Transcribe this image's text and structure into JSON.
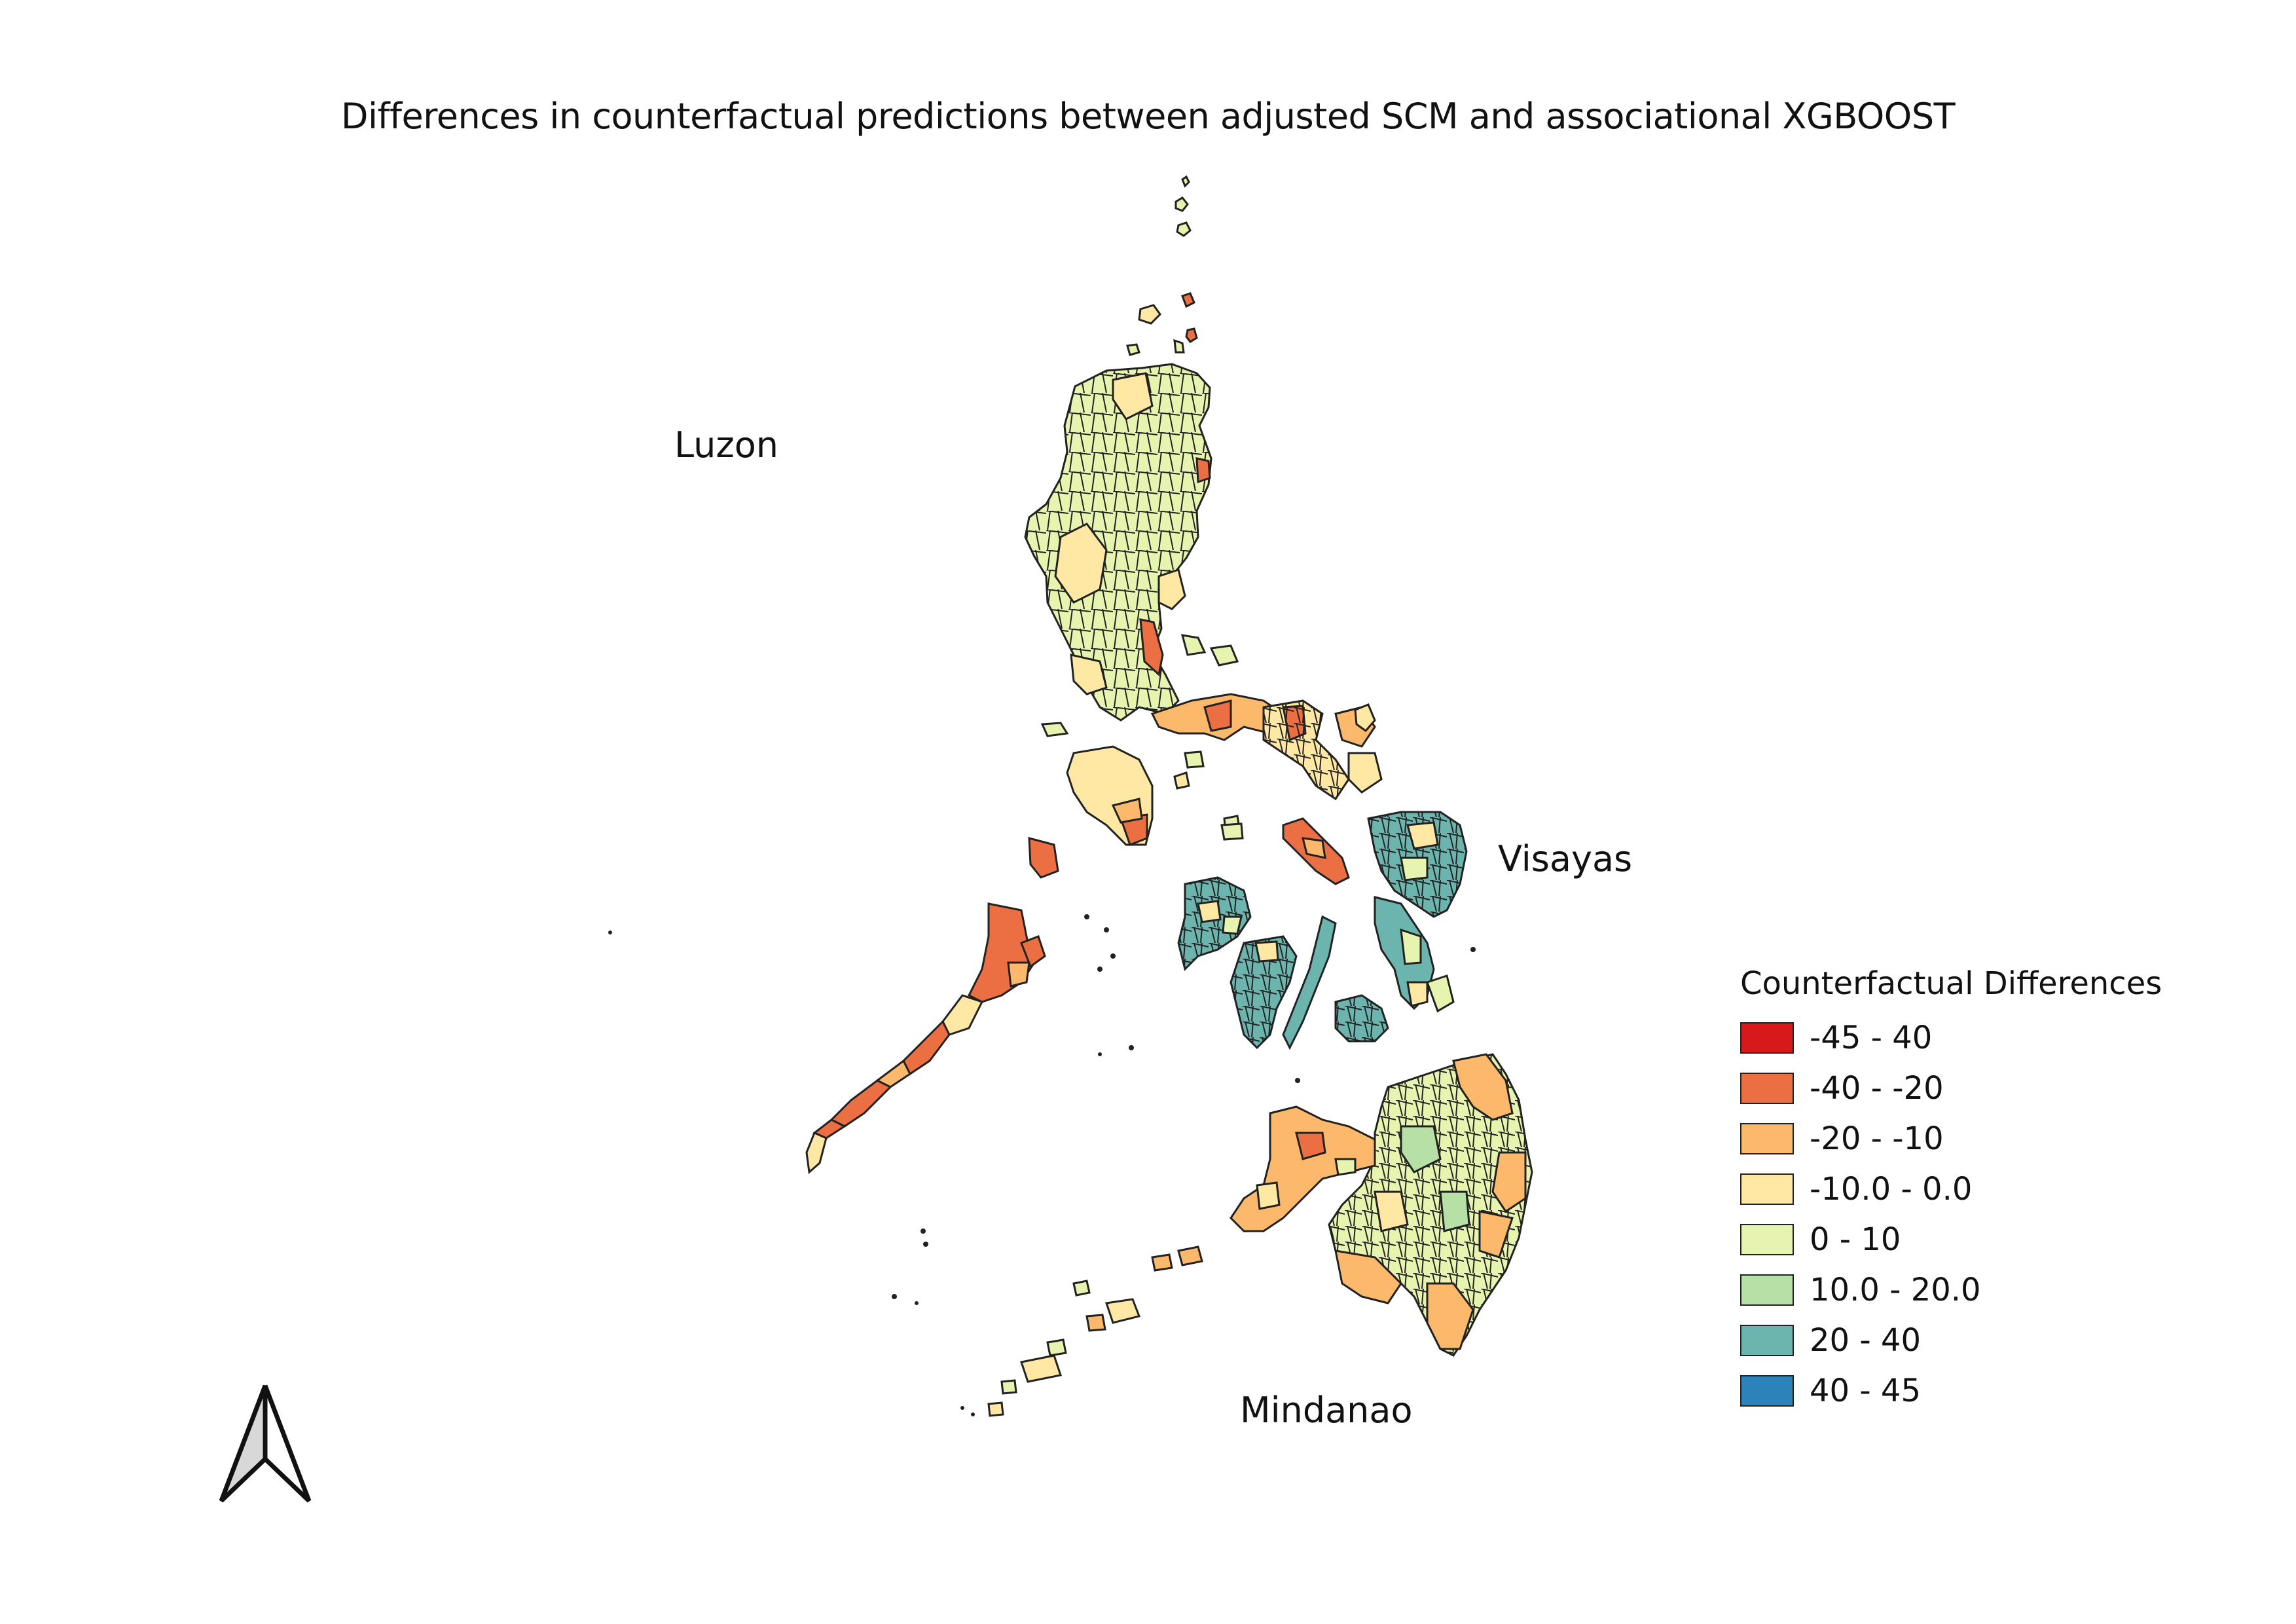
{
  "title": "Differences in counterfactual predictions between adjusted SCM and associational XGBOOST",
  "regions": {
    "luzon": "Luzon",
    "visayas": "Visayas",
    "mindanao": "Mindanao"
  },
  "legend": {
    "title": "Counterfactual Differences",
    "items": [
      {
        "label": "-45 - 40",
        "color": "#d7191c"
      },
      {
        "label": "-40 - -20",
        "color": "#ec6e43"
      },
      {
        "label": "-20 - -10",
        "color": "#fdb96b"
      },
      {
        "label": "-10.0 - 0.0",
        "color": "#fee8a4"
      },
      {
        "label": "0 - 10",
        "color": "#e6f4b0"
      },
      {
        "label": "10.0 - 20.0",
        "color": "#b7e0a6"
      },
      {
        "label": "20 - 40",
        "color": "#6bb5ae"
      },
      {
        "label": "40 - 45",
        "color": "#2b83ba"
      }
    ]
  },
  "north_arrow": "north-arrow-icon"
}
